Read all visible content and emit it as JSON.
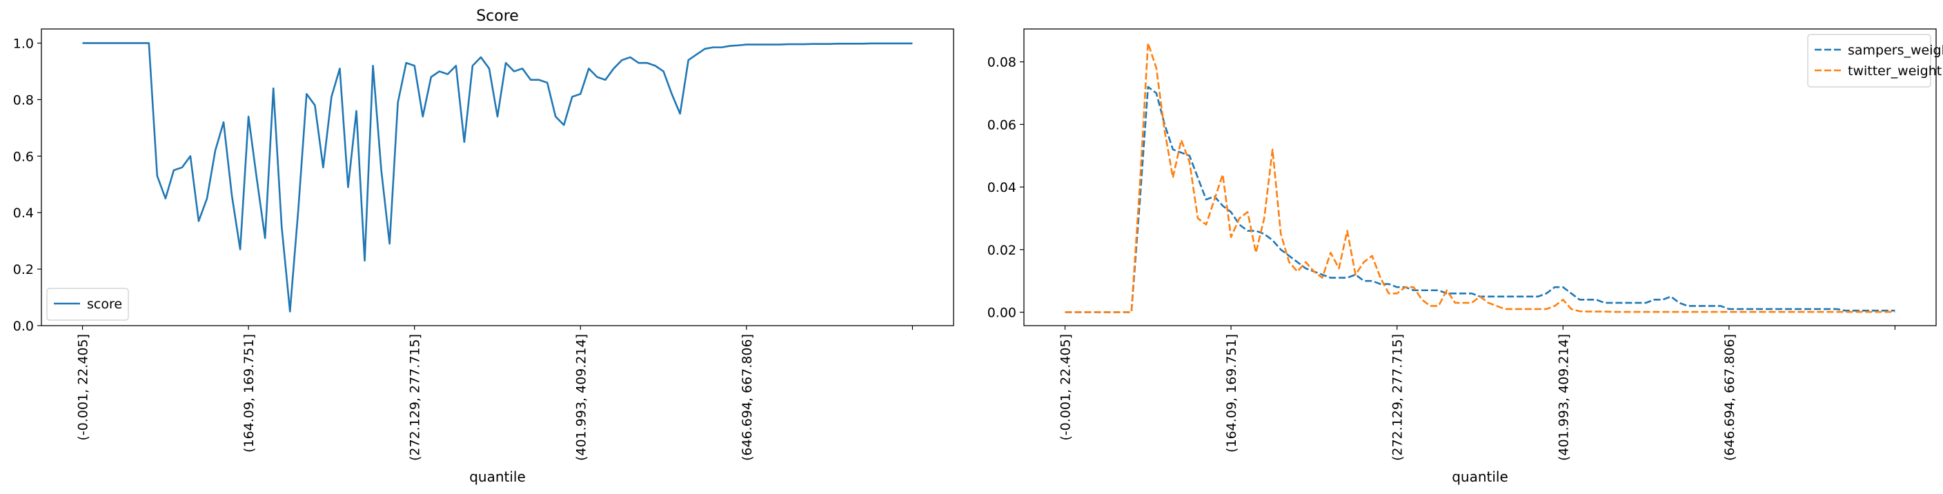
{
  "figure": {
    "charts": [
      {
        "id": "left",
        "title": "Score",
        "xlabel": "quantile",
        "ylabel": "",
        "yticks": [
          0.0,
          0.2,
          0.4,
          0.6,
          0.8,
          1.0
        ],
        "ytick_labels": [
          "0.0",
          "0.2",
          "0.4",
          "0.6",
          "0.8",
          "1.0"
        ],
        "legend": {
          "position": "lower-left",
          "items": [
            {
              "name": "score",
              "color": "#1f77b4",
              "dash": "solid"
            }
          ]
        }
      },
      {
        "id": "right",
        "title": "",
        "xlabel": "quantile",
        "ylabel": "",
        "yticks": [
          0.0,
          0.02,
          0.04,
          0.06,
          0.08
        ],
        "ytick_labels": [
          "0.00",
          "0.02",
          "0.04",
          "0.06",
          "0.08"
        ],
        "legend": {
          "position": "upper-right",
          "items": [
            {
              "name": "sampers_weight",
              "color": "#1f77b4",
              "dash": "dashed"
            },
            {
              "name": "twitter_weight",
              "color": "#ff7f0e",
              "dash": "dashed"
            }
          ]
        }
      }
    ]
  },
  "chart_data": [
    {
      "type": "line",
      "title": "Score",
      "xlabel": "quantile",
      "ylabel": "",
      "xlim": [
        -4.95,
        104.95
      ],
      "ylim": [
        0.0,
        1.05
      ],
      "xticks": [
        0,
        20,
        40,
        60,
        80,
        100
      ],
      "xtick_labels": [
        "(-0.001, 22.405]",
        "(164.09, 169.751]",
        "(272.129, 277.715]",
        "(401.993, 409.214]",
        "(646.694, 667.806]",
        ""
      ],
      "grid": false,
      "legend_placement": "lower-left",
      "series": [
        {
          "name": "score",
          "color": "#1f77b4",
          "dash": "solid",
          "values": [
            1.0,
            1.0,
            1.0,
            1.0,
            1.0,
            1.0,
            1.0,
            1.0,
            1.0,
            0.53,
            0.45,
            0.55,
            0.56,
            0.6,
            0.37,
            0.45,
            0.62,
            0.72,
            0.46,
            0.27,
            0.74,
            0.52,
            0.31,
            0.84,
            0.35,
            0.05,
            0.41,
            0.82,
            0.78,
            0.56,
            0.81,
            0.91,
            0.49,
            0.76,
            0.23,
            0.92,
            0.55,
            0.29,
            0.79,
            0.93,
            0.92,
            0.74,
            0.88,
            0.9,
            0.89,
            0.92,
            0.65,
            0.92,
            0.95,
            0.91,
            0.74,
            0.93,
            0.9,
            0.91,
            0.87,
            0.87,
            0.86,
            0.74,
            0.71,
            0.81,
            0.82,
            0.91,
            0.88,
            0.87,
            0.91,
            0.94,
            0.95,
            0.93,
            0.93,
            0.92,
            0.9,
            0.82,
            0.75,
            0.94,
            0.96,
            0.98,
            0.985,
            0.985,
            0.99,
            0.992,
            0.995,
            0.995,
            0.995,
            0.995,
            0.995,
            0.996,
            0.996,
            0.996,
            0.997,
            0.997,
            0.997,
            0.998,
            0.998,
            0.998,
            0.998,
            0.999,
            0.999,
            0.999,
            0.999,
            0.999,
            0.999
          ]
        }
      ]
    },
    {
      "type": "line",
      "title": "",
      "xlabel": "quantile",
      "ylabel": "",
      "xlim": [
        -4.95,
        104.95
      ],
      "ylim": [
        -0.0043,
        0.0905
      ],
      "xticks": [
        0,
        20,
        40,
        60,
        80,
        100
      ],
      "xtick_labels": [
        "(-0.001, 22.405]",
        "(164.09, 169.751]",
        "(272.129, 277.715]",
        "(401.993, 409.214]",
        "(646.694, 667.806]",
        ""
      ],
      "grid": false,
      "legend_placement": "upper-right",
      "series": [
        {
          "name": "sampers_weight",
          "color": "#1f77b4",
          "dash": "dashed",
          "values": [
            0,
            0,
            0,
            0,
            0,
            0,
            0,
            0,
            0,
            0.035,
            0.072,
            0.07,
            0.06,
            0.052,
            0.051,
            0.05,
            0.043,
            0.036,
            0.037,
            0.034,
            0.032,
            0.028,
            0.026,
            0.026,
            0.025,
            0.023,
            0.02,
            0.018,
            0.016,
            0.014,
            0.013,
            0.012,
            0.011,
            0.011,
            0.011,
            0.012,
            0.01,
            0.01,
            0.009,
            0.009,
            0.008,
            0.008,
            0.007,
            0.007,
            0.007,
            0.007,
            0.006,
            0.006,
            0.006,
            0.006,
            0.005,
            0.005,
            0.005,
            0.005,
            0.005,
            0.005,
            0.005,
            0.005,
            0.006,
            0.008,
            0.008,
            0.006,
            0.004,
            0.004,
            0.004,
            0.003,
            0.003,
            0.003,
            0.003,
            0.003,
            0.003,
            0.004,
            0.004,
            0.005,
            0.003,
            0.002,
            0.002,
            0.002,
            0.002,
            0.002,
            0.001,
            0.001,
            0.001,
            0.001,
            0.001,
            0.001,
            0.001,
            0.001,
            0.001,
            0.001,
            0.001,
            0.001,
            0.001,
            0.001,
            0.0005,
            0.0005,
            0.0005,
            0.0005,
            0.0005,
            0.0005,
            0.0005
          ]
        },
        {
          "name": "twitter_weight",
          "color": "#ff7f0e",
          "dash": "dashed",
          "values": [
            0,
            0,
            0,
            0,
            0,
            0,
            0,
            0,
            0,
            0.04,
            0.086,
            0.078,
            0.058,
            0.043,
            0.055,
            0.048,
            0.03,
            0.028,
            0.036,
            0.044,
            0.024,
            0.03,
            0.032,
            0.019,
            0.03,
            0.052,
            0.025,
            0.016,
            0.013,
            0.016,
            0.013,
            0.011,
            0.019,
            0.014,
            0.026,
            0.012,
            0.016,
            0.018,
            0.011,
            0.006,
            0.006,
            0.008,
            0.008,
            0.004,
            0.002,
            0.002,
            0.007,
            0.003,
            0.003,
            0.003,
            0.005,
            0.003,
            0.002,
            0.001,
            0.001,
            0.001,
            0.001,
            0.001,
            0.001,
            0.002,
            0.004,
            0.001,
            0.0003,
            0.0002,
            0.0002,
            0.0002,
            0.0001,
            0.0001,
            0.0001,
            0.0001,
            0.0001,
            0.0001,
            0.0001,
            0.0001,
            0.0001,
            0.0001,
            0.0001,
            0.0001,
            0.0001,
            0.0001,
            0.0001,
            0.0001,
            0.0001,
            0.0001,
            0.0001,
            0.0001,
            0.0001,
            0.0001,
            0.0001,
            0.0001,
            0.0001,
            0.0001,
            0.0001,
            0.0001,
            0.0001,
            0.0001,
            0.0001,
            0.0001,
            0.0001,
            0.0001,
            0.0001
          ]
        }
      ]
    }
  ]
}
